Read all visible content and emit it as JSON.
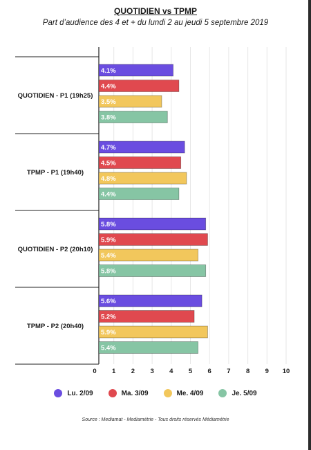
{
  "chart_data": {
    "type": "bar",
    "orientation": "horizontal",
    "title": "QUOTIDIEN vs TPMP",
    "subtitle": "Part d’audience des 4 et + du lundi 2 au jeudi 5 septembre 2019",
    "categories": [
      "QUOTIDIEN - P1 (19h25)",
      "TPMP - P1 (19h40)",
      "QUOTIDIEN - P2 (20h10)",
      "TPMP - P2 (20h40)"
    ],
    "series": [
      {
        "name": "Lu. 2/09",
        "color": "#6a4de0",
        "values": [
          4.1,
          4.7,
          5.8,
          5.6
        ],
        "labels": [
          "4.1%",
          "4.7%",
          "5.8%",
          "5.6%"
        ]
      },
      {
        "name": "Ma. 3/09",
        "color": "#e0494f",
        "values": [
          4.4,
          4.5,
          5.9,
          5.2
        ],
        "labels": [
          "4.4%",
          "4.5%",
          "5.9%",
          "5.2%"
        ]
      },
      {
        "name": "Me. 4/09",
        "color": "#f2c75c",
        "values": [
          3.5,
          4.8,
          5.4,
          5.9
        ],
        "labels": [
          "3.5%",
          "4.8%",
          "5.4%",
          "5.9%"
        ]
      },
      {
        "name": "Je. 5/09",
        "color": "#86c5a4",
        "values": [
          3.8,
          4.4,
          5.8,
          5.4
        ],
        "labels": [
          "3.8%",
          "4.4%",
          "5.8%",
          "5.4%"
        ]
      }
    ],
    "xlim": [
      0,
      10
    ],
    "xticks": [
      "0",
      "1",
      "2",
      "3",
      "4",
      "5",
      "6",
      "7",
      "8",
      "9",
      "10"
    ],
    "grid": true,
    "legend_position": "bottom"
  },
  "source": "Source : Mediamat - Mediamétrie - Tous droits réservés Médiamétrie"
}
